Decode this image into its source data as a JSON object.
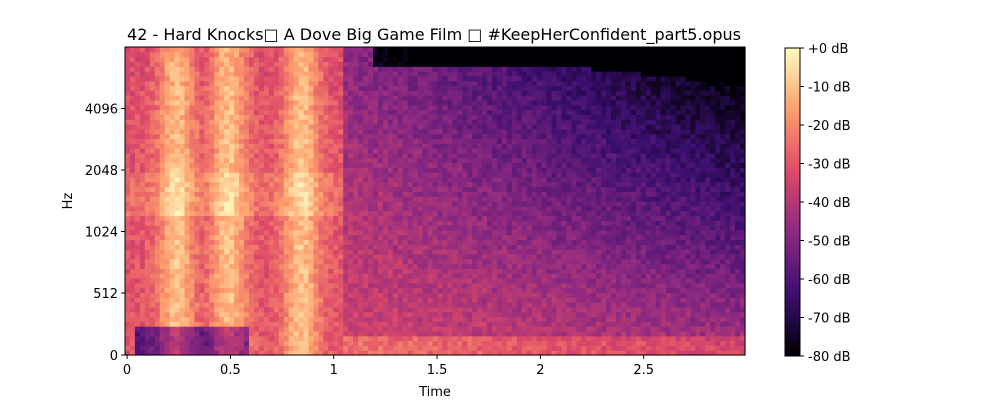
{
  "chart_data": {
    "type": "heatmap",
    "title": "42 - Hard Knocks□ A Dove Big Game Film □ #KeepHerConfident_part5.opus",
    "xlabel": "Time",
    "ylabel": "Hz",
    "x_ticks": [
      "0",
      "0.5",
      "1",
      "1.5",
      "2",
      "2.5"
    ],
    "x_tick_values": [
      0,
      0.5,
      1,
      1.5,
      2,
      2.5
    ],
    "xlim": [
      -0.01,
      2.99
    ],
    "y_scale": "log2",
    "y_ticks": [
      "0",
      "512",
      "1024",
      "2048",
      "4096"
    ],
    "y_tick_values": [
      0,
      512,
      1024,
      2048,
      4096
    ],
    "colorbar": {
      "ticks": [
        "+0 dB",
        "-10 dB",
        "-20 dB",
        "-30 dB",
        "-40 dB",
        "-50 dB",
        "-60 dB",
        "-70 dB",
        "-80 dB"
      ],
      "values": [
        0,
        -10,
        -20,
        -30,
        -40,
        -50,
        -60,
        -70,
        -80
      ],
      "range": [
        -80,
        0
      ],
      "colormap": "magma"
    },
    "colormap_stops": [
      "#000004",
      "#3b0f70",
      "#8c2981",
      "#de4968",
      "#fe9f6d",
      "#fcfdbf"
    ],
    "time_frames": 125,
    "freq_bins": 64,
    "description_points": {
      "speech_bursts_s": [
        0.25,
        0.5,
        0.85
      ],
      "speech_end_s": 1.0,
      "high_freq_dark_start_s": 1.3
    }
  }
}
